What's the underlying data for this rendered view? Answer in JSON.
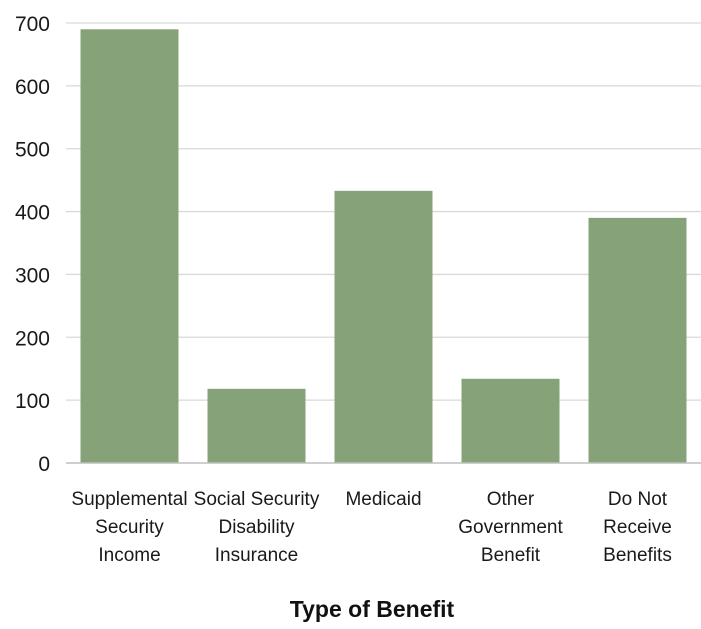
{
  "chart_data": {
    "type": "bar",
    "title": "",
    "xlabel": "Type of Benefit",
    "ylabel": "",
    "ylim": [
      0,
      700
    ],
    "yticks": [
      0,
      100,
      200,
      300,
      400,
      500,
      600,
      700
    ],
    "grid": true,
    "legend": "none",
    "categories": [
      [
        "Supplemental",
        "Security",
        "Income"
      ],
      [
        "Social Security",
        "Disability",
        "Insurance"
      ],
      [
        "Medicaid"
      ],
      [
        "Other",
        "Government",
        "Benefit"
      ],
      [
        "Do Not",
        "Receive",
        "Benefits"
      ]
    ],
    "values": [
      690,
      118,
      433,
      134,
      390
    ],
    "colors": {
      "bar": "#86a279",
      "grid": "#d9d9d9",
      "axis": "#bfbfbf"
    }
  }
}
